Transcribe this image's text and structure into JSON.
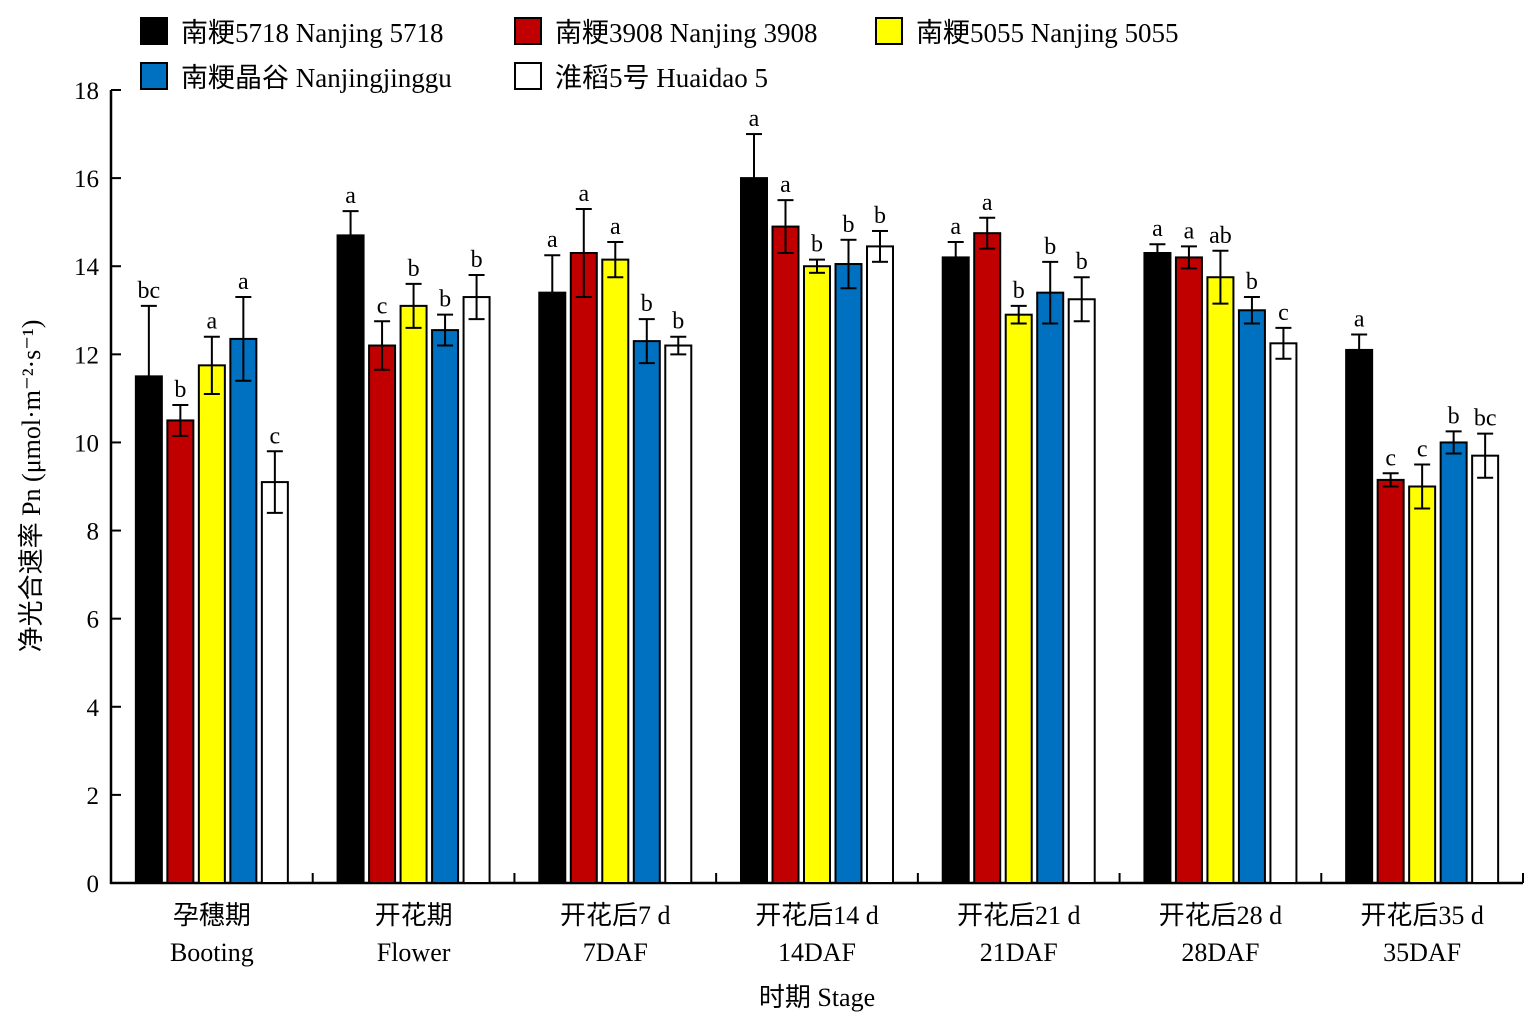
{
  "chart_data": {
    "type": "bar",
    "xlabel": "时期 Stage",
    "ylabel": "净光合速率 Pn (μmol·m⁻²·s⁻¹)",
    "ylim": [
      0,
      18
    ],
    "yticks": [
      0,
      2,
      4,
      6,
      8,
      10,
      12,
      14,
      16,
      18
    ],
    "legend_position": "top",
    "categories": [
      {
        "cn": "孕穗期",
        "en": "Booting"
      },
      {
        "cn": "开花期",
        "en": "Flower"
      },
      {
        "cn": "开花后7 d",
        "en": "7DAF"
      },
      {
        "cn": "开花后14 d",
        "en": "14DAF"
      },
      {
        "cn": "开花后21 d",
        "en": "21DAF"
      },
      {
        "cn": "开花后28 d",
        "en": "28DAF"
      },
      {
        "cn": "开花后35 d",
        "en": "35DAF"
      }
    ],
    "series": [
      {
        "name": "南粳5718 Nanjing 5718",
        "color": "#000000",
        "values": [
          11.5,
          14.7,
          13.4,
          16.0,
          14.2,
          14.3,
          12.1
        ],
        "errors": [
          1.6,
          0.55,
          0.85,
          1.0,
          0.35,
          0.2,
          0.35
        ],
        "labels": [
          "bc",
          "a",
          "a",
          "a",
          "a",
          "a",
          "a"
        ]
      },
      {
        "name": "南粳3908 Nanjing 3908",
        "color": "#c00000",
        "values": [
          10.5,
          12.2,
          14.3,
          14.9,
          14.75,
          14.2,
          9.15
        ],
        "errors": [
          0.35,
          0.55,
          1.0,
          0.6,
          0.35,
          0.25,
          0.15
        ],
        "labels": [
          "b",
          "c",
          "a",
          "a",
          "a",
          "a",
          "c"
        ]
      },
      {
        "name": "南粳5055 Nanjing 5055",
        "color": "#ffff00",
        "values": [
          11.75,
          13.1,
          14.15,
          14.0,
          12.9,
          13.75,
          9.0
        ],
        "errors": [
          0.65,
          0.5,
          0.4,
          0.15,
          0.2,
          0.6,
          0.5
        ],
        "labels": [
          "a",
          "b",
          "a",
          "b",
          "b",
          "ab",
          "c"
        ]
      },
      {
        "name": "南粳晶谷 Nanjingjinggu",
        "color": "#0070c0",
        "values": [
          12.35,
          12.55,
          12.3,
          14.05,
          13.4,
          13.0,
          10.0
        ],
        "errors": [
          0.95,
          0.35,
          0.5,
          0.55,
          0.7,
          0.3,
          0.25
        ],
        "labels": [
          "a",
          "b",
          "b",
          "b",
          "b",
          "b",
          "b"
        ]
      },
      {
        "name": "淮稻5号 Huaidao 5",
        "color": "#ffffff",
        "values": [
          9.1,
          13.3,
          12.2,
          14.45,
          13.25,
          12.25,
          9.7
        ],
        "errors": [
          0.7,
          0.5,
          0.2,
          0.35,
          0.5,
          0.35,
          0.5
        ],
        "labels": [
          "c",
          "b",
          "b",
          "b",
          "b",
          "c",
          "bc"
        ]
      }
    ]
  }
}
